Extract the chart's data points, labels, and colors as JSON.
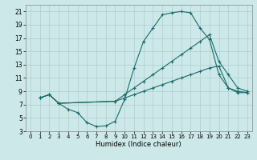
{
  "xlabel": "Humidex (Indice chaleur)",
  "background_color": "#cde8e8",
  "grid_color": "#aecece",
  "line_color": "#1a6b6b",
  "xlim": [
    -0.5,
    23.5
  ],
  "ylim": [
    3,
    22
  ],
  "xticks": [
    0,
    1,
    2,
    3,
    4,
    5,
    6,
    7,
    8,
    9,
    10,
    11,
    12,
    13,
    14,
    15,
    16,
    17,
    18,
    19,
    20,
    21,
    22,
    23
  ],
  "yticks": [
    3,
    5,
    7,
    9,
    11,
    13,
    15,
    17,
    19,
    21
  ],
  "curve1_x": [
    1,
    2,
    3,
    4,
    5,
    6,
    7,
    8,
    9,
    10,
    11,
    12,
    13,
    14,
    15,
    16,
    17,
    18,
    19,
    20,
    21,
    22,
    23
  ],
  "curve1_y": [
    8.0,
    8.5,
    7.2,
    6.3,
    5.8,
    4.3,
    3.7,
    3.8,
    4.5,
    7.8,
    12.5,
    16.5,
    18.5,
    20.5,
    20.8,
    21.0,
    20.8,
    18.5,
    16.8,
    11.5,
    9.5,
    9.0,
    8.8
  ],
  "curve2_x": [
    1,
    2,
    3,
    9,
    10,
    11,
    12,
    13,
    14,
    15,
    16,
    17,
    18,
    19,
    20,
    21,
    22,
    23
  ],
  "curve2_y": [
    8.0,
    8.5,
    7.2,
    7.5,
    8.5,
    9.5,
    10.5,
    11.5,
    12.5,
    13.5,
    14.5,
    15.5,
    16.5,
    17.5,
    13.5,
    11.5,
    9.5,
    9.0
  ],
  "curve3_x": [
    1,
    2,
    3,
    9,
    10,
    11,
    12,
    13,
    14,
    15,
    16,
    17,
    18,
    19,
    20,
    21,
    22,
    23
  ],
  "curve3_y": [
    8.0,
    8.5,
    7.2,
    7.5,
    8.0,
    8.5,
    9.0,
    9.5,
    10.0,
    10.5,
    11.0,
    11.5,
    12.0,
    12.5,
    12.8,
    9.5,
    8.8,
    8.8
  ],
  "xtick_fontsize": 5.0,
  "ytick_fontsize": 5.5,
  "xlabel_fontsize": 6.0
}
